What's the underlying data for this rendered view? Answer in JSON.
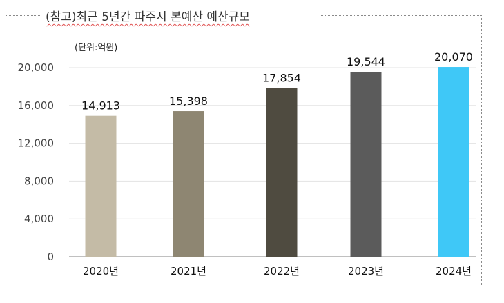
{
  "chart_data": {
    "type": "bar",
    "title": "(참고)최근 5년간 파주시 본예산 예산규모",
    "unit_label": "(단위:억원)",
    "categories": [
      "2020년",
      "2021년",
      "2022년",
      "2023년",
      "2024년"
    ],
    "values": [
      14913,
      15398,
      17854,
      19544,
      20070
    ],
    "value_labels": [
      "14,913",
      "15,398",
      "17,854",
      "19,544",
      "20,070"
    ],
    "ylim": [
      0,
      20000
    ],
    "yticks": [
      0,
      4000,
      8000,
      12000,
      16000,
      20000
    ],
    "ytick_labels": [
      "0",
      "4,000",
      "8,000",
      "12,000",
      "16,000",
      "20,000"
    ],
    "grid": true,
    "colors": [
      "#c4bba6",
      "#8e8672",
      "#4f4b40",
      "#5b5b5b",
      "#3fc8f7"
    ]
  }
}
